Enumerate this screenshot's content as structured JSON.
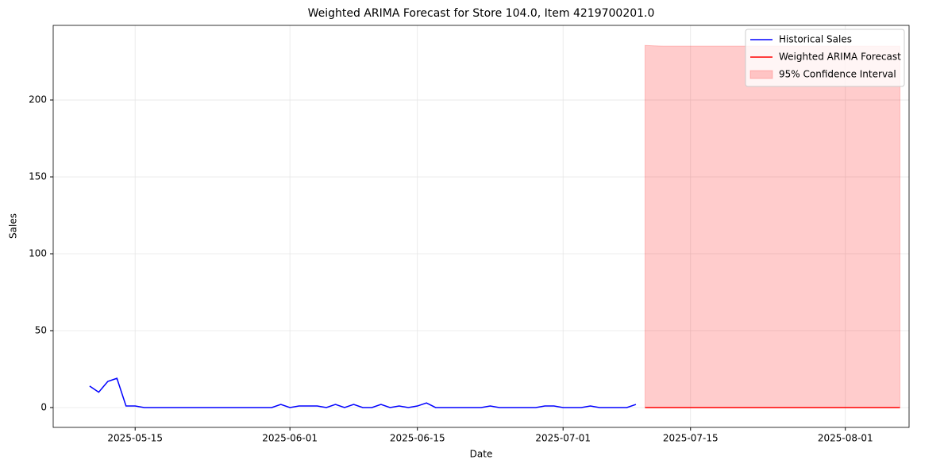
{
  "chart_data": {
    "type": "line",
    "title": "Weighted ARIMA Forecast for Store 104.0, Item 4219700201.0",
    "x_label": "Date",
    "y_label": "Sales",
    "xlim": [
      "2025-05-06",
      "2025-08-08"
    ],
    "xticks": [
      "2025-05-15",
      "2025-06-01",
      "2025-06-15",
      "2025-07-01",
      "2025-07-15",
      "2025-08-01"
    ],
    "ylim": [
      -12.9,
      248.5
    ],
    "yticks": [
      0,
      50,
      100,
      150,
      200
    ],
    "grid": true,
    "legend": "upper right",
    "series": [
      {
        "name": "Historical Sales",
        "color": "#0000ff",
        "x": [
          "2025-05-10",
          "2025-05-11",
          "2025-05-12",
          "2025-05-13",
          "2025-05-14",
          "2025-05-15",
          "2025-05-16",
          "2025-05-17",
          "2025-05-18",
          "2025-05-19",
          "2025-05-20",
          "2025-05-21",
          "2025-05-22",
          "2025-05-23",
          "2025-05-24",
          "2025-05-25",
          "2025-05-26",
          "2025-05-27",
          "2025-05-28",
          "2025-05-29",
          "2025-05-30",
          "2025-05-31",
          "2025-06-01",
          "2025-06-02",
          "2025-06-03",
          "2025-06-04",
          "2025-06-05",
          "2025-06-06",
          "2025-06-07",
          "2025-06-08",
          "2025-06-09",
          "2025-06-10",
          "2025-06-11",
          "2025-06-12",
          "2025-06-13",
          "2025-06-14",
          "2025-06-15",
          "2025-06-16",
          "2025-06-17",
          "2025-06-18",
          "2025-06-19",
          "2025-06-20",
          "2025-06-21",
          "2025-06-22",
          "2025-06-23",
          "2025-06-24",
          "2025-06-25",
          "2025-06-26",
          "2025-06-27",
          "2025-06-28",
          "2025-06-29",
          "2025-06-30",
          "2025-07-01",
          "2025-07-02",
          "2025-07-03",
          "2025-07-04",
          "2025-07-05",
          "2025-07-06",
          "2025-07-07",
          "2025-07-08",
          "2025-07-09"
        ],
        "values": [
          14,
          10,
          17,
          19,
          1,
          1,
          0,
          0,
          0,
          0,
          0,
          0,
          0,
          0,
          0,
          0,
          0,
          0,
          0,
          0,
          0,
          2,
          0,
          1,
          1,
          1,
          0,
          2,
          0,
          2,
          0,
          0,
          2,
          0,
          1,
          0,
          1,
          3,
          0,
          0,
          0,
          0,
          0,
          0,
          1,
          0,
          0,
          0,
          0,
          0,
          1,
          1,
          0,
          0,
          0,
          1,
          0,
          0,
          0,
          0,
          2
        ]
      },
      {
        "name": "Weighted ARIMA Forecast",
        "color": "#ff0000",
        "x": [
          "2025-07-10",
          "2025-07-11",
          "2025-07-12",
          "2025-07-13",
          "2025-07-14",
          "2025-07-15",
          "2025-07-16",
          "2025-07-17",
          "2025-07-18",
          "2025-07-19",
          "2025-07-20",
          "2025-07-21",
          "2025-07-22",
          "2025-07-23",
          "2025-07-24",
          "2025-07-25",
          "2025-07-26",
          "2025-07-27",
          "2025-07-28",
          "2025-07-29",
          "2025-07-30",
          "2025-07-31",
          "2025-08-01",
          "2025-08-02",
          "2025-08-03",
          "2025-08-04",
          "2025-08-05",
          "2025-08-06",
          "2025-08-07"
        ],
        "values": [
          0,
          0,
          0,
          0,
          0,
          0,
          0,
          0,
          0,
          0,
          0,
          0,
          0,
          0,
          0,
          0,
          0,
          0,
          0,
          0,
          0,
          0,
          0,
          0,
          0,
          0,
          0,
          0,
          0
        ],
        "interval_name": "95% Confidence Interval",
        "interval_color": "#ff0000",
        "upper": [
          235.5,
          235.2,
          235,
          235,
          235,
          235,
          235,
          235,
          235,
          235,
          235,
          235,
          235,
          235,
          235,
          235,
          235,
          235,
          235,
          235,
          235,
          235,
          235,
          235,
          235,
          235,
          235,
          235,
          235
        ],
        "lower": [
          0,
          0,
          0,
          0,
          0,
          0,
          0,
          0,
          0,
          0,
          0,
          0,
          0,
          0,
          0,
          0,
          0,
          0,
          0,
          0,
          0,
          0,
          0,
          0,
          0,
          0,
          0,
          0,
          0
        ]
      }
    ]
  }
}
